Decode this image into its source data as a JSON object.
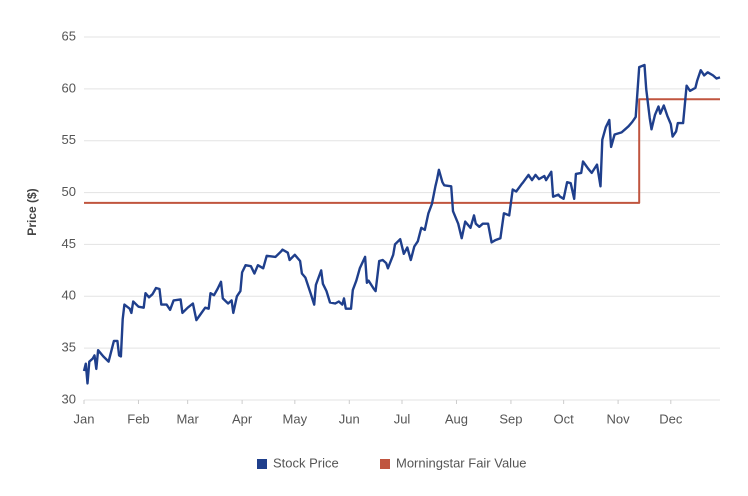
{
  "chart_data": {
    "type": "line",
    "ylabel": "Price ($)",
    "xlim": [
      0,
      362
    ],
    "ylim": [
      30,
      65
    ],
    "yticks": [
      30,
      35,
      40,
      45,
      50,
      55,
      60,
      65
    ],
    "xticks": [
      {
        "value": 0,
        "label": "Jan"
      },
      {
        "value": 31,
        "label": "Feb"
      },
      {
        "value": 59,
        "label": "Mar"
      },
      {
        "value": 90,
        "label": "Apr"
      },
      {
        "value": 120,
        "label": "May"
      },
      {
        "value": 151,
        "label": "Jun"
      },
      {
        "value": 181,
        "label": "Jul"
      },
      {
        "value": 212,
        "label": "Aug"
      },
      {
        "value": 243,
        "label": "Sep"
      },
      {
        "value": 273,
        "label": "Oct"
      },
      {
        "value": 304,
        "label": "Nov"
      },
      {
        "value": 334,
        "label": "Dec"
      }
    ],
    "grid": true,
    "legend": "bottom",
    "series": [
      {
        "name": "Stock Price",
        "color": "#1f3f8c",
        "x": [
          0,
          1,
          2,
          3,
          5,
          6,
          7,
          8,
          11,
          14,
          17,
          19,
          20,
          21,
          22,
          23,
          26,
          27,
          28,
          31,
          34,
          35,
          37,
          39,
          41,
          43,
          44,
          47,
          49,
          51,
          55,
          56,
          59,
          62,
          64,
          66,
          69,
          71,
          72,
          74,
          76,
          78,
          79,
          82,
          84,
          85,
          87,
          89,
          90,
          92,
          95,
          97,
          99,
          102,
          104,
          109,
          112,
          113,
          116,
          117,
          120,
          123,
          124,
          126,
          129,
          131,
          132,
          135,
          136,
          138,
          140,
          143,
          145,
          147,
          148,
          149,
          152,
          153,
          155,
          157,
          160,
          161,
          162,
          165,
          166,
          168,
          170,
          172,
          173,
          176,
          177,
          180,
          182,
          184,
          186,
          188,
          190,
          192,
          194,
          196,
          198,
          200,
          201,
          202,
          204,
          205,
          209,
          210,
          213,
          215,
          217,
          220,
          222,
          223,
          225,
          227,
          230,
          232,
          234,
          237,
          239,
          242,
          244,
          246,
          249,
          250,
          253,
          255,
          257,
          259,
          262,
          263,
          266,
          267,
          270,
          271,
          273,
          275,
          277,
          279,
          280,
          283,
          284,
          287,
          289,
          292,
          294,
          295,
          297,
          299,
          300,
          302,
          306,
          308,
          310,
          312,
          314,
          316,
          319,
          320,
          322,
          323,
          325,
          327,
          328,
          330,
          332,
          334,
          335,
          337,
          338,
          341,
          343,
          345,
          348,
          349,
          351,
          353,
          355,
          358,
          360,
          362
        ],
        "values": [
          32.8,
          33.5,
          31.6,
          33.7,
          34,
          34.3,
          33,
          34.8,
          34.2,
          33.7,
          35.7,
          35.7,
          34.3,
          34.2,
          37.8,
          39.2,
          38.8,
          38.4,
          39.5,
          39,
          38.9,
          40.3,
          39.9,
          40.2,
          40.8,
          40.7,
          39.2,
          39.2,
          38.7,
          39.6,
          39.7,
          38.4,
          38.9,
          39.3,
          37.7,
          38.2,
          38.9,
          38.8,
          40.3,
          40.1,
          40.7,
          41.4,
          39.8,
          39.3,
          39.6,
          38.4,
          40,
          40.5,
          42.3,
          43,
          42.9,
          42.2,
          43,
          42.7,
          43.9,
          43.8,
          44.3,
          44.5,
          44.2,
          43.5,
          44,
          43.4,
          42.2,
          41.8,
          40.3,
          39.2,
          41.1,
          42.5,
          41.2,
          40.5,
          39.4,
          39.3,
          39.5,
          39.2,
          39.8,
          38.8,
          38.8,
          40.6,
          41.5,
          42.7,
          43.8,
          41.3,
          41.5,
          40.7,
          40.5,
          43.4,
          43.5,
          43.2,
          42.7,
          44,
          45,
          45.5,
          44.1,
          44.7,
          43.5,
          44.8,
          45.3,
          46.6,
          46.4,
          48,
          48.9,
          50.6,
          51.3,
          52.2,
          51,
          50.7,
          50.6,
          48.2,
          47,
          45.6,
          47.2,
          46.6,
          47.8,
          47,
          46.7,
          47,
          47,
          45.2,
          45.4,
          45.6,
          48,
          47.8,
          50.3,
          50.1,
          50.8,
          51,
          51.7,
          51.2,
          51.7,
          51.3,
          51.6,
          51.2,
          52,
          49.6,
          49.8,
          49.6,
          49.4,
          51,
          50.9,
          49.4,
          51.8,
          51.9,
          53,
          52.3,
          51.9,
          52.7,
          50.6,
          55.1,
          56.3,
          57,
          54.4,
          55.6,
          55.8,
          56.1,
          56.4,
          56.8,
          57.3,
          62.1,
          62.3,
          60,
          57.2,
          56.1,
          57.5,
          58.3,
          57.6,
          58.4,
          57.4,
          56.6,
          55.4,
          55.9,
          56.7,
          56.7,
          60.3,
          59.8,
          60.1,
          60.8,
          61.8,
          61.3,
          61.6,
          61.3,
          61,
          61.1
        ]
      },
      {
        "name": "Morningstar Fair Value",
        "color": "#c0553f",
        "x": [
          0,
          316,
          316,
          362
        ],
        "values": [
          49,
          49,
          59,
          59
        ]
      }
    ]
  }
}
